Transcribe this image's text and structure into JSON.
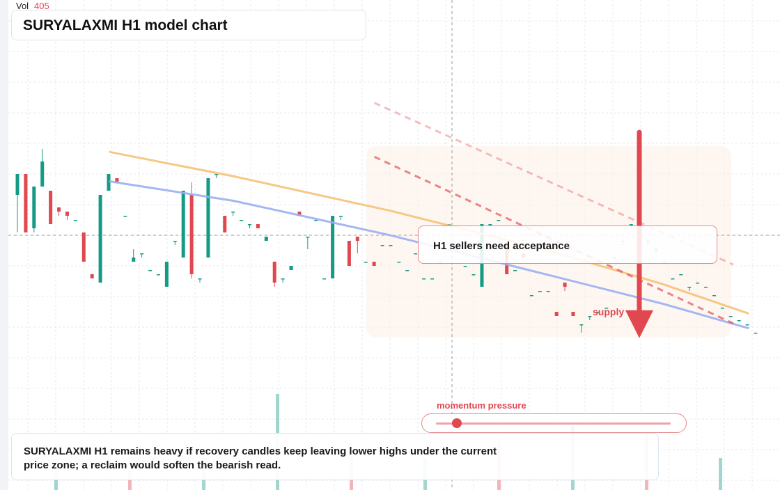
{
  "header": {
    "title": "SURYALAXMI H1 model chart",
    "vol_label": "Vol",
    "vol_value": "405"
  },
  "annotations": {
    "note": "H1 sellers need acceptance",
    "supply_label": "supply",
    "momentum_label": "momentum pressure",
    "summary": "SURYALAXMI H1 remains heavy if recovery candles keep leaving lower highs under the current price zone; a reclaim would soften the bearish read."
  },
  "momentum": {
    "level": 0.05
  },
  "colors": {
    "up": "#159a85",
    "down": "#e0474f",
    "ema_fast": "#f6c177",
    "ema_slow": "#9aaff0",
    "trend": "#e0474f"
  },
  "chart_data": {
    "type": "candlestick",
    "title": "SURYALAXMI H1 model chart",
    "ylim": [
      0,
      100
    ],
    "grid": true,
    "candles": [
      {
        "o": 55,
        "h": 60,
        "l": 46,
        "c": 60
      },
      {
        "o": 60,
        "h": 60,
        "l": 46,
        "c": 46
      },
      {
        "o": 47,
        "h": 57,
        "l": 46,
        "c": 57
      },
      {
        "o": 57,
        "h": 66,
        "l": 57,
        "c": 63
      },
      {
        "o": 56,
        "h": 56,
        "l": 48,
        "c": 48
      },
      {
        "o": 52,
        "h": 52,
        "l": 50,
        "c": 51
      },
      {
        "o": 51,
        "h": 51,
        "l": 49,
        "c": 50
      },
      {
        "o": 49,
        "h": 49,
        "l": 49,
        "c": 49
      },
      {
        "o": 46,
        "h": 46,
        "l": 39,
        "c": 39
      },
      {
        "o": 36,
        "h": 36,
        "l": 35,
        "c": 35
      },
      {
        "o": 34,
        "h": 55,
        "l": 34,
        "c": 55
      },
      {
        "o": 56,
        "h": 60,
        "l": 56,
        "c": 60
      },
      {
        "o": 59,
        "h": 59,
        "l": 58,
        "c": 58
      },
      {
        "o": 50,
        "h": 50,
        "l": 50,
        "c": 50
      },
      {
        "o": 39,
        "h": 42,
        "l": 39,
        "c": 40
      },
      {
        "o": 41,
        "h": 41,
        "l": 40,
        "c": 41
      },
      {
        "o": 37,
        "h": 37,
        "l": 37,
        "c": 37
      },
      {
        "o": 36,
        "h": 36,
        "l": 36,
        "c": 36
      },
      {
        "o": 33,
        "h": 39,
        "l": 33,
        "c": 39
      },
      {
        "o": 44,
        "h": 44,
        "l": 43,
        "c": 44
      },
      {
        "o": 40,
        "h": 56,
        "l": 40,
        "c": 56
      },
      {
        "o": 55,
        "h": 58,
        "l": 35,
        "c": 36
      },
      {
        "o": 35,
        "h": 35,
        "l": 34,
        "c": 35
      },
      {
        "o": 40,
        "h": 59,
        "l": 40,
        "c": 59
      },
      {
        "o": 60,
        "h": 60,
        "l": 59,
        "c": 60
      },
      {
        "o": 50,
        "h": 50,
        "l": 46,
        "c": 46
      },
      {
        "o": 51,
        "h": 51,
        "l": 50,
        "c": 51
      },
      {
        "o": 49,
        "h": 49,
        "l": 49,
        "c": 49
      },
      {
        "o": 48,
        "h": 48,
        "l": 47,
        "c": 48
      },
      {
        "o": 48,
        "h": 48,
        "l": 47,
        "c": 47
      },
      {
        "o": 44,
        "h": 45,
        "l": 44,
        "c": 45
      },
      {
        "o": 39,
        "h": 39,
        "l": 33,
        "c": 34
      },
      {
        "o": 35,
        "h": 35,
        "l": 34,
        "c": 35
      },
      {
        "o": 37,
        "h": 38,
        "l": 37,
        "c": 38
      },
      {
        "o": 51,
        "h": 51,
        "l": 50,
        "c": 50
      },
      {
        "o": 45,
        "h": 45,
        "l": 42,
        "c": 45
      },
      {
        "o": 49,
        "h": 49,
        "l": 49,
        "c": 49
      },
      {
        "o": 35,
        "h": 35,
        "l": 35,
        "c": 35
      },
      {
        "o": 35,
        "h": 50,
        "l": 35,
        "c": 50
      },
      {
        "o": 50,
        "h": 50,
        "l": 49,
        "c": 50
      },
      {
        "o": 44,
        "h": 44,
        "l": 38,
        "c": 38
      },
      {
        "o": 45,
        "h": 45,
        "l": 41,
        "c": 44
      },
      {
        "o": 39,
        "h": 39,
        "l": 39,
        "c": 39
      },
      {
        "o": 39,
        "h": 39,
        "l": 39,
        "c": 38
      },
      {
        "o": 43,
        "h": 43,
        "l": 43,
        "c": 43
      },
      {
        "o": 43,
        "h": 43,
        "l": 43,
        "c": 43
      },
      {
        "o": 39,
        "h": 39,
        "l": 39,
        "c": 39
      },
      {
        "o": 37,
        "h": 37,
        "l": 37,
        "c": 37
      },
      {
        "o": 41,
        "h": 41,
        "l": 41,
        "c": 41
      },
      {
        "o": 35,
        "h": 35,
        "l": 35,
        "c": 35
      },
      {
        "o": 35,
        "h": 35,
        "l": 35,
        "c": 35
      },
      {
        "o": 39,
        "h": 39,
        "l": 39,
        "c": 39
      },
      {
        "o": 48,
        "h": 48,
        "l": 48,
        "c": 48
      },
      {
        "o": 42,
        "h": 42,
        "l": 42,
        "c": 42
      },
      {
        "o": 38,
        "h": 38,
        "l": 38,
        "c": 38
      },
      {
        "o": 36,
        "h": 36,
        "l": 36,
        "c": 36
      },
      {
        "o": 33,
        "h": 48,
        "l": 33,
        "c": 48
      },
      {
        "o": 48,
        "h": 48,
        "l": 47,
        "c": 48
      },
      {
        "o": 49,
        "h": 49,
        "l": 49,
        "c": 49
      },
      {
        "o": 43,
        "h": 43,
        "l": 36,
        "c": 36
      },
      {
        "o": 37,
        "h": 37,
        "l": 37,
        "c": 37
      },
      {
        "o": 41,
        "h": 41,
        "l": 40,
        "c": 40
      },
      {
        "o": 31,
        "h": 31,
        "l": 31,
        "c": 31
      },
      {
        "o": 32,
        "h": 32,
        "l": 32,
        "c": 32
      },
      {
        "o": 32,
        "h": 32,
        "l": 32,
        "c": 32
      },
      {
        "o": 27,
        "h": 27,
        "l": 27,
        "c": 26
      },
      {
        "o": 34,
        "h": 34,
        "l": 32,
        "c": 33
      },
      {
        "o": 27,
        "h": 27,
        "l": 26,
        "c": 26
      },
      {
        "o": 24,
        "h": 24,
        "l": 22,
        "c": 24
      },
      {
        "o": 26,
        "h": 26,
        "l": 25,
        "c": 26
      },
      {
        "o": 27,
        "h": 27,
        "l": 27,
        "c": 27
      },
      {
        "o": 28,
        "h": 28,
        "l": 28,
        "c": 28
      },
      {
        "o": 40,
        "h": 40,
        "l": 40,
        "c": 40
      },
      {
        "o": 44,
        "h": 44,
        "l": 43,
        "c": 44
      },
      {
        "o": 48,
        "h": 48,
        "l": 47,
        "c": 48
      },
      {
        "o": 48,
        "h": 48,
        "l": 47,
        "c": 48
      },
      {
        "o": 44,
        "h": 44,
        "l": 43,
        "c": 44
      },
      {
        "o": 42,
        "h": 42,
        "l": 41,
        "c": 42
      },
      {
        "o": 39,
        "h": 39,
        "l": 39,
        "c": 39
      },
      {
        "o": 35,
        "h": 35,
        "l": 35,
        "c": 35
      },
      {
        "o": 36,
        "h": 36,
        "l": 36,
        "c": 36
      },
      {
        "o": 33,
        "h": 33,
        "l": 32,
        "c": 33
      },
      {
        "o": 34,
        "h": 34,
        "l": 34,
        "c": 34
      },
      {
        "o": 33,
        "h": 33,
        "l": 33,
        "c": 33
      },
      {
        "o": 31,
        "h": 31,
        "l": 31,
        "c": 31
      },
      {
        "o": 28,
        "h": 28,
        "l": 28,
        "c": 28
      },
      {
        "o": 26,
        "h": 26,
        "l": 26,
        "c": 26
      },
      {
        "o": 25,
        "h": 25,
        "l": 25,
        "c": 25
      },
      {
        "o": 24,
        "h": 24,
        "l": 24,
        "c": 24
      },
      {
        "o": 22,
        "h": 22,
        "l": 22,
        "c": 22
      }
    ],
    "volume": [
      {
        "v": 0.15,
        "up": true
      },
      {
        "v": 0.12,
        "up": false
      },
      {
        "v": 0.2,
        "up": true
      },
      {
        "v": 0.6,
        "up": true
      },
      {
        "v": 0.25,
        "up": false
      },
      {
        "v": 0.2,
        "up": true
      },
      {
        "v": 0.3,
        "up": false
      },
      {
        "v": 0.4,
        "up": true
      },
      {
        "v": 0.35,
        "up": false
      },
      {
        "v": 0.2,
        "up": true
      }
    ],
    "ema_fast": [
      [
        0.14,
        0.69
      ],
      [
        0.3,
        0.64
      ],
      [
        0.5,
        0.57
      ],
      [
        0.7,
        0.49
      ],
      [
        0.85,
        0.42
      ],
      [
        0.96,
        0.36
      ]
    ],
    "ema_slow": [
      [
        0.14,
        0.63
      ],
      [
        0.3,
        0.59
      ],
      [
        0.5,
        0.52
      ],
      [
        0.7,
        0.44
      ],
      [
        0.85,
        0.38
      ],
      [
        0.96,
        0.33
      ]
    ],
    "trend_upper": [
      [
        0.48,
        0.79
      ],
      [
        0.94,
        0.46
      ]
    ],
    "trend_lower": [
      [
        0.48,
        0.68
      ],
      [
        0.94,
        0.34
      ]
    ],
    "entry_arrow": {
      "from": 0.73,
      "to": 0.31
    }
  }
}
